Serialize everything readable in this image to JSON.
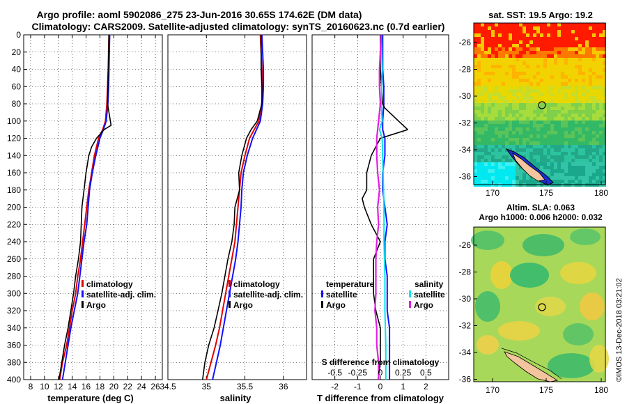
{
  "header": {
    "line1": "Argo profile: aoml 5902086_275 23-Jun-2016 30.65S 174.62E (DM data)",
    "line2": "Climatology: CARS2009. Satellite-adjusted climatology: synTS_20160623.nc (0.7d earlier)"
  },
  "colors": {
    "climatology": "#e00000",
    "satellite": "#1010ff",
    "argo": "#000000",
    "sat_salinity": "#00e5ee",
    "argo_salinity": "#e020e0"
  },
  "chart_data": [
    {
      "type": "line",
      "name": "temperature",
      "xlabel": "temperature (deg C)",
      "ylabel": "",
      "xlim": [
        7,
        27
      ],
      "ylim": [
        400,
        0
      ],
      "xticks": [
        "8",
        "10",
        "12",
        "14",
        "16",
        "18",
        "20",
        "22",
        "24",
        "26"
      ],
      "yticks": [
        "0",
        "20",
        "40",
        "60",
        "80",
        "100",
        "120",
        "140",
        "160",
        "180",
        "200",
        "220",
        "240",
        "260",
        "280",
        "300",
        "320",
        "340",
        "360",
        "380",
        "400"
      ],
      "legend": [
        "climatology",
        "satellite-adj. clim.",
        "Argo"
      ],
      "series": [
        {
          "name": "climatology",
          "depth": [
            0,
            20,
            40,
            60,
            80,
            100,
            110,
            120,
            140,
            160,
            180,
            200,
            220,
            240,
            260,
            280,
            300,
            320,
            340,
            360,
            380,
            400
          ],
          "values": [
            19.3,
            19.25,
            19.2,
            19.1,
            19.0,
            18.8,
            18.4,
            17.8,
            17.2,
            16.8,
            16.4,
            16.1,
            15.8,
            15.5,
            15.2,
            14.8,
            14.5,
            14.0,
            13.6,
            13.2,
            12.6,
            12.2
          ]
        },
        {
          "name": "satellite-adj. clim.",
          "depth": [
            0,
            20,
            40,
            60,
            80,
            100,
            110,
            120,
            140,
            160,
            180,
            200,
            220,
            240,
            260,
            280,
            300,
            320,
            340,
            360,
            380,
            400
          ],
          "values": [
            19.4,
            19.35,
            19.3,
            19.25,
            19.15,
            18.9,
            18.5,
            18.0,
            17.4,
            16.9,
            16.5,
            16.3,
            16.1,
            15.7,
            15.4,
            15.1,
            14.8,
            14.3,
            13.8,
            13.4,
            13.0,
            12.6
          ]
        },
        {
          "name": "Argo",
          "depth": [
            0,
            20,
            40,
            60,
            80,
            85,
            105,
            110,
            120,
            130,
            140,
            160,
            180,
            200,
            220,
            240,
            260,
            280,
            300,
            320,
            340,
            360,
            380,
            400
          ],
          "values": [
            19.3,
            19.25,
            19.2,
            19.15,
            19.1,
            19.2,
            19.6,
            18.6,
            17.5,
            16.8,
            16.4,
            16.0,
            15.7,
            15.4,
            15.3,
            15.2,
            14.9,
            14.5,
            14.2,
            13.8,
            13.4,
            12.9,
            12.5,
            12.1
          ]
        }
      ]
    },
    {
      "type": "line",
      "name": "salinity",
      "xlabel": "salinity",
      "ylabel": "",
      "xlim": [
        34.5,
        36.3
      ],
      "ylim": [
        400,
        0
      ],
      "xticks": [
        "34.5",
        "35",
        "35.5",
        "36"
      ],
      "legend": [
        "climatology",
        "satellite-adj. clim.",
        "Argo"
      ],
      "series": [
        {
          "name": "climatology",
          "depth": [
            0,
            20,
            40,
            60,
            80,
            100,
            120,
            140,
            160,
            180,
            200,
            220,
            240,
            260,
            280,
            300,
            320,
            340,
            360,
            380,
            400
          ],
          "values": [
            35.7,
            35.71,
            35.72,
            35.73,
            35.72,
            35.68,
            35.56,
            35.5,
            35.45,
            35.43,
            35.41,
            35.39,
            35.37,
            35.33,
            35.29,
            35.25,
            35.21,
            35.17,
            35.12,
            35.06,
            35.0
          ]
        },
        {
          "name": "satellite-adj. clim.",
          "depth": [
            0,
            20,
            40,
            60,
            80,
            100,
            120,
            140,
            160,
            180,
            200,
            220,
            240,
            260,
            280,
            300,
            320,
            340,
            360,
            380,
            400
          ],
          "values": [
            35.72,
            35.73,
            35.74,
            35.74,
            35.73,
            35.7,
            35.6,
            35.53,
            35.48,
            35.46,
            35.45,
            35.43,
            35.41,
            35.38,
            35.34,
            35.3,
            35.26,
            35.22,
            35.18,
            35.13,
            35.08
          ]
        },
        {
          "name": "Argo",
          "depth": [
            0,
            20,
            40,
            60,
            80,
            100,
            110,
            120,
            140,
            160,
            180,
            200,
            220,
            240,
            260,
            280,
            300,
            320,
            340,
            360,
            380,
            400
          ],
          "values": [
            35.71,
            35.71,
            35.71,
            35.72,
            35.72,
            35.66,
            35.58,
            35.52,
            35.46,
            35.42,
            35.43,
            35.37,
            35.36,
            35.33,
            35.28,
            35.24,
            35.2,
            35.15,
            35.1,
            35.03,
            34.98,
            34.95
          ]
        }
      ]
    },
    {
      "type": "line",
      "name": "difference from climatology",
      "xlabel": "T difference from climatology",
      "xlabel_top": "S difference from climatology",
      "xlim": [
        -3,
        3
      ],
      "ylim": [
        400,
        0
      ],
      "xticks": [
        "-2",
        "-1",
        "0",
        "1",
        "2"
      ],
      "xticks_top": [
        "-0.5",
        "-0.25",
        "0",
        "0.25",
        "0.5"
      ],
      "legend_left_title": "temperature",
      "legend_right_title": "salinity",
      "legend_left": [
        "satellite",
        "Argo"
      ],
      "legend_right": [
        "satellite",
        "Argo"
      ],
      "series": [
        {
          "name": "T satellite",
          "depth": [
            0,
            20,
            40,
            60,
            80,
            100,
            110,
            120,
            140,
            160,
            180,
            200,
            220,
            240,
            260,
            280,
            300,
            320,
            340,
            360,
            380,
            400
          ],
          "values": [
            0.1,
            0.1,
            0.1,
            0.15,
            0.15,
            0.1,
            0.1,
            0.2,
            0.2,
            0.1,
            0.1,
            0.2,
            0.3,
            0.2,
            0.2,
            0.3,
            0.3,
            0.3,
            0.4,
            0.4,
            0.4,
            0.4
          ]
        },
        {
          "name": "T Argo",
          "depth": [
            0,
            20,
            40,
            60,
            80,
            85,
            100,
            110,
            115,
            120,
            140,
            160,
            180,
            190,
            200,
            220,
            240,
            260,
            280,
            300,
            320,
            340,
            360,
            380,
            400
          ],
          "values": [
            0.0,
            0.0,
            0.0,
            0.05,
            0.1,
            0.2,
            0.8,
            1.2,
            0.6,
            0.0,
            -0.4,
            -0.6,
            -0.6,
            -0.8,
            -0.7,
            -0.4,
            0.0,
            -0.3,
            -0.3,
            -0.3,
            -0.2,
            0.0,
            0.0,
            0.0,
            -0.1
          ]
        },
        {
          "name": "S satellite",
          "depth": [
            0,
            40,
            80,
            100,
            110,
            120,
            160,
            200,
            240,
            280,
            320,
            360,
            400
          ],
          "values": [
            0.01,
            0.02,
            0.01,
            0.02,
            -0.01,
            0.02,
            0.03,
            0.04,
            0.04,
            0.05,
            0.05,
            0.06,
            0.06
          ]
        },
        {
          "name": "S Argo",
          "depth": [
            0,
            20,
            40,
            60,
            80,
            100,
            110,
            120,
            140,
            160,
            180,
            200,
            220,
            240,
            260,
            280,
            300,
            320,
            340,
            360,
            380,
            400
          ],
          "values": [
            0.01,
            0.0,
            -0.01,
            -0.01,
            0.0,
            -0.02,
            -0.03,
            -0.04,
            -0.04,
            -0.03,
            -0.01,
            -0.03,
            -0.02,
            -0.04,
            -0.05,
            -0.05,
            -0.05,
            -0.06,
            -0.04,
            -0.04,
            -0.02,
            -0.02
          ]
        }
      ]
    }
  ],
  "maps": {
    "sst": {
      "title": "sat. SST: 19.5 Argo: 19.2",
      "yticks": [
        "-26",
        "-28",
        "-30",
        "-32",
        "-34",
        "-36"
      ],
      "xticks": [
        "170",
        "175",
        "180"
      ]
    },
    "sla": {
      "title1": "Altim. SLA: 0.063",
      "title2": "Argo h1000: 0.006 h2000: 0.032",
      "yticks": [
        "-26",
        "-28",
        "-30",
        "-32",
        "-34",
        "-36"
      ],
      "xticks": [
        "170",
        "175",
        "180"
      ]
    }
  },
  "footer": "©IMOS 13-Dec-2018 03:21:02"
}
